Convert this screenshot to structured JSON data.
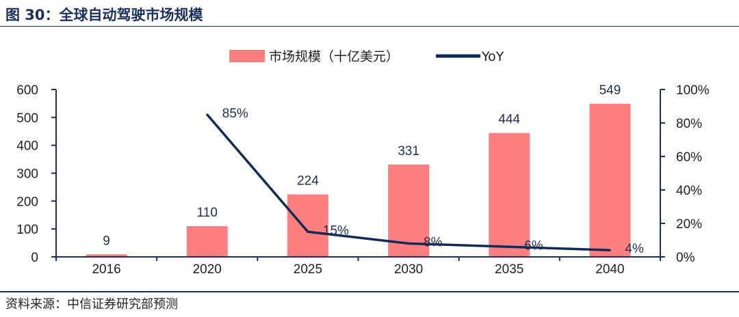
{
  "figure_title": "图 30：全球自动驾驶市场规模",
  "source": "资料来源：中信证券研究部预测",
  "colors": {
    "bar": "#fe7f7f",
    "line": "#0f2a55",
    "axis": "#1a2f5a"
  },
  "chart_data": {
    "type": "bar+line",
    "categories": [
      "2016",
      "2020",
      "2025",
      "2030",
      "2035",
      "2040"
    ],
    "series": [
      {
        "name": "市场规模（十亿美元）",
        "type": "bar",
        "axis": "left",
        "values": [
          9,
          110,
          224,
          331,
          444,
          549
        ],
        "labels": [
          "9",
          "110",
          "224",
          "331",
          "444",
          "549"
        ]
      },
      {
        "name": "YoY",
        "type": "line",
        "axis": "right",
        "values": [
          null,
          85,
          15,
          8,
          6,
          4
        ],
        "labels": [
          "",
          "85%",
          "15%",
          "8%",
          "6%",
          "4%"
        ]
      }
    ],
    "y_left": {
      "min": 0,
      "max": 600,
      "step": 100,
      "tick_labels": [
        "0",
        "100",
        "200",
        "300",
        "400",
        "500",
        "600"
      ]
    },
    "y_right": {
      "min": 0,
      "max": 100,
      "step": 20,
      "tick_labels": [
        "0%",
        "20%",
        "40%",
        "60%",
        "80%",
        "100%"
      ]
    },
    "legend_position": "top-center",
    "grid": false
  }
}
